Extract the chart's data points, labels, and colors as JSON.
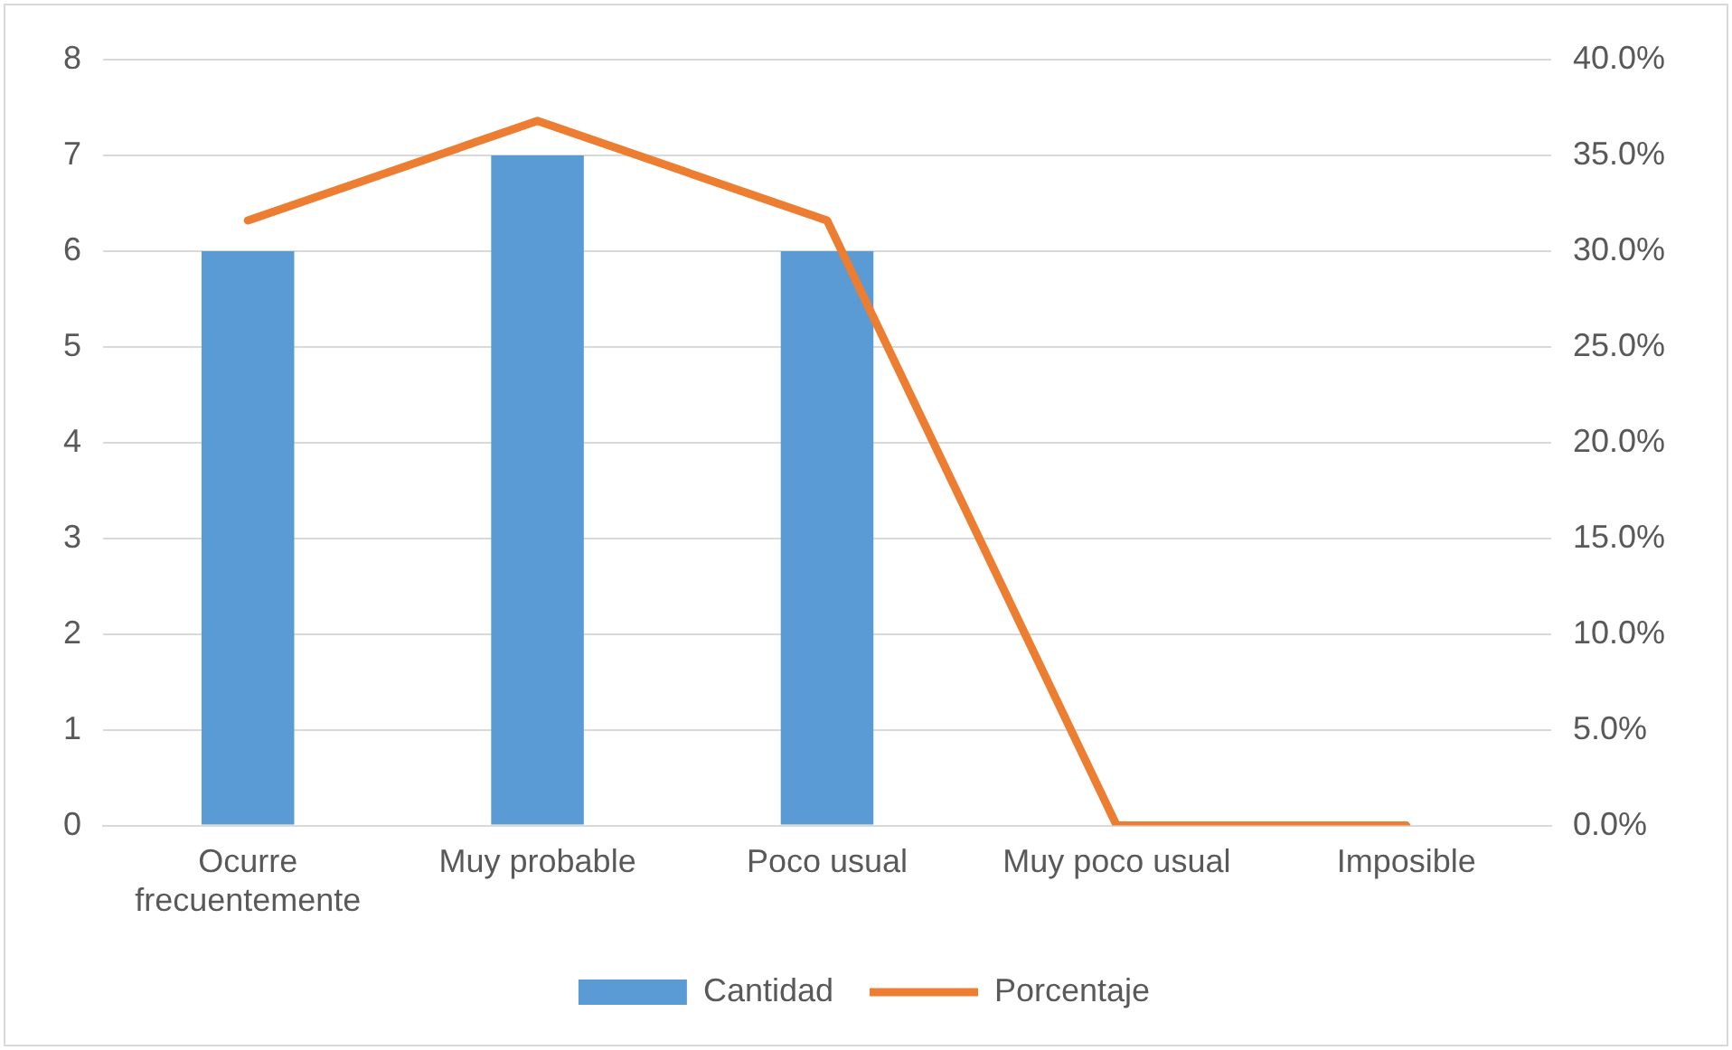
{
  "chart_data": {
    "type": "bar",
    "categories": [
      "Ocurre frecuentemente",
      "Muy probable",
      "Poco usual",
      "Muy poco usual",
      "Imposible"
    ],
    "series": [
      {
        "name": "Cantidad",
        "color": "#5b9bd5",
        "values": [
          6,
          7,
          6,
          0,
          0
        ]
      },
      {
        "name": "Porcentaje",
        "type": "line",
        "axis": "y2",
        "color": "#ed7d31",
        "values": [
          31.6,
          36.8,
          31.6,
          0,
          0
        ]
      }
    ],
    "ylim": [
      0,
      8
    ],
    "yticks": [
      0,
      1,
      2,
      3,
      4,
      5,
      6,
      7,
      8
    ],
    "y2lim": [
      0,
      40
    ],
    "y2ticks": [
      {
        "value": 0,
        "label": "0.0%"
      },
      {
        "value": 5,
        "label": "5.0%"
      },
      {
        "value": 10,
        "label": "10.0%"
      },
      {
        "value": 15,
        "label": "15.0%"
      },
      {
        "value": 20,
        "label": "20.0%"
      },
      {
        "value": 25,
        "label": "25.0%"
      },
      {
        "value": 30,
        "label": "30.0%"
      },
      {
        "value": 35,
        "label": "35.0%"
      },
      {
        "value": 40,
        "label": "40.0%"
      }
    ],
    "grid": "y",
    "legend": "bottom",
    "marker": "none",
    "line_style": "solid"
  }
}
